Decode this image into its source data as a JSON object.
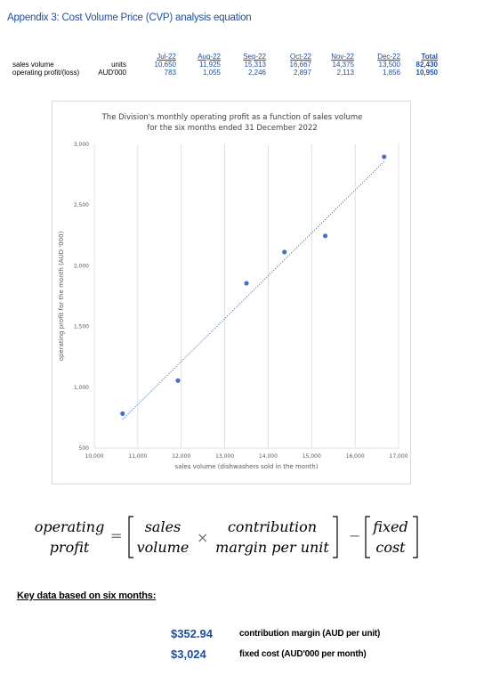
{
  "title": "Appendix 3: Cost Volume Price (CVP) analysis equation",
  "table": {
    "months": [
      "Jul-22",
      "Aug-22",
      "Sep-22",
      "Oct-22",
      "Nov-22",
      "Dec-22"
    ],
    "total_label": "Total",
    "rows": [
      {
        "label": "sales volume",
        "unit": "units",
        "values": [
          "10,650",
          "11,925",
          "15,313",
          "16,667",
          "14,375",
          "13,500"
        ],
        "total": "82,430"
      },
      {
        "label": "operating profit/(loss)",
        "unit": "AUD'000",
        "values": [
          "783",
          "1,055",
          "2,246",
          "2,897",
          "2,113",
          "1,856"
        ],
        "total": "10,950"
      }
    ]
  },
  "chart_data": {
    "type": "scatter",
    "title": "The Division's monthly operating profit as a function of sales volume for the six months ended 31 December 2022",
    "title_lines": [
      "The Division's monthly operating profit as a function of sales volume",
      "for the six months ended 31 December 2022"
    ],
    "xlabel": "sales volume (dishwashers sold in the month)",
    "ylabel": "operating profit for the month (AUD '000)",
    "xlim": [
      10000,
      17000
    ],
    "ylim": [
      500,
      3000
    ],
    "xticks": [
      10000,
      11000,
      12000,
      13000,
      14000,
      15000,
      16000,
      17000
    ],
    "xtick_labels": [
      "10,000",
      "11,000",
      "12,000",
      "13,000",
      "14,000",
      "15,000",
      "16,000",
      "17,000"
    ],
    "yticks": [
      500,
      1000,
      1500,
      2000,
      2500,
      3000
    ],
    "ytick_labels": [
      "500",
      "1,000",
      "1,500",
      "2,000",
      "2,500",
      "3,000"
    ],
    "grid": "vertical",
    "trendline": "linear, dotted",
    "points": [
      {
        "x": 10650,
        "y": 783
      },
      {
        "x": 11925,
        "y": 1055
      },
      {
        "x": 15313,
        "y": 2246
      },
      {
        "x": 16667,
        "y": 2897
      },
      {
        "x": 14375,
        "y": 2113
      },
      {
        "x": 13500,
        "y": 1856
      }
    ],
    "point_color": "#4472c4"
  },
  "formula": {
    "lhs_top": "operating",
    "lhs_bottom": "profit",
    "equals": "=",
    "term1_top": "sales",
    "term1_bottom": "volume",
    "times": "×",
    "term2_top": "contribution",
    "term2_bottom": "margin per unit",
    "minus": "−",
    "term3_top": "fixed",
    "term3_bottom": "cost"
  },
  "key_data": {
    "heading": "Key data based on six months:",
    "items": [
      {
        "value": "$352.94",
        "label": "contribution margin (AUD per unit)"
      },
      {
        "value": "$3,024",
        "label": "fixed cost (AUD'000 per month)"
      }
    ]
  }
}
